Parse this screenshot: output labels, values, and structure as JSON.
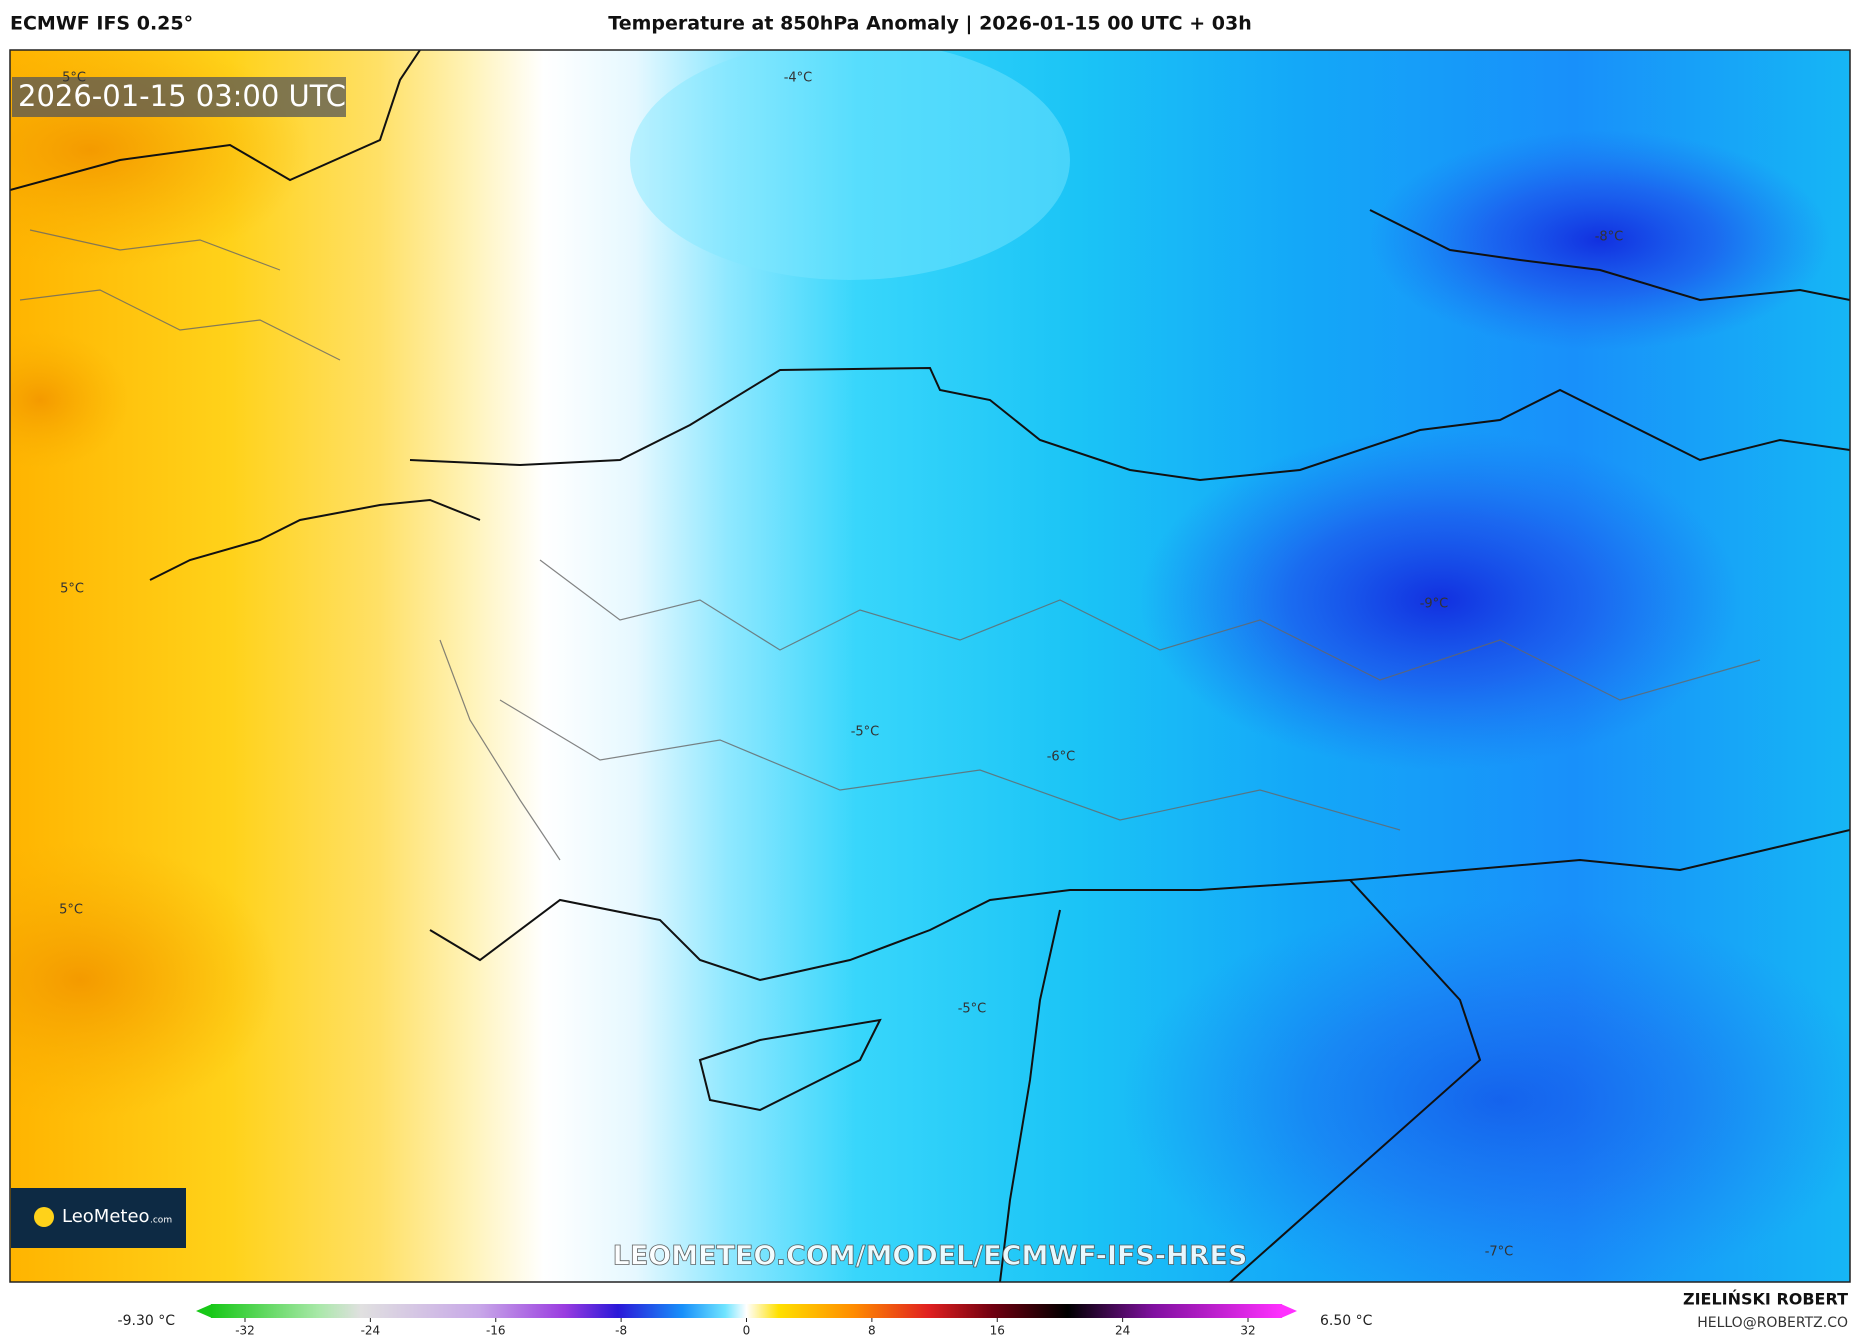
{
  "header": {
    "model": "ECMWF IFS 0.25°",
    "title": "Temperature at 850hPa Anomaly | 2026-01-15 00 UTC + 03h"
  },
  "map": {
    "timestamp": "2026-01-15 03:00 UTC",
    "contour_labels": [
      "5°C",
      "-4°C",
      "-8°C",
      "5°C",
      "-9°C",
      "-5°C",
      "-6°C",
      "5°C",
      "-5°C",
      "-7°C"
    ],
    "watermark": "LEOMETEO.COM/MODEL/ECMWF-IFS-HRES",
    "logo": {
      "name": "LeoMeteo",
      "suffix": ".com"
    }
  },
  "colorbar": {
    "min_label": "-9.30 °C",
    "max_label": "6.50 °C",
    "ticks": [
      -32,
      -24,
      -16,
      -8,
      0,
      8,
      16,
      24,
      32
    ]
  },
  "footer": {
    "author": "ZIELIŃSKI ROBERT",
    "email": "HELLO@ROBERTZ.CO"
  }
}
